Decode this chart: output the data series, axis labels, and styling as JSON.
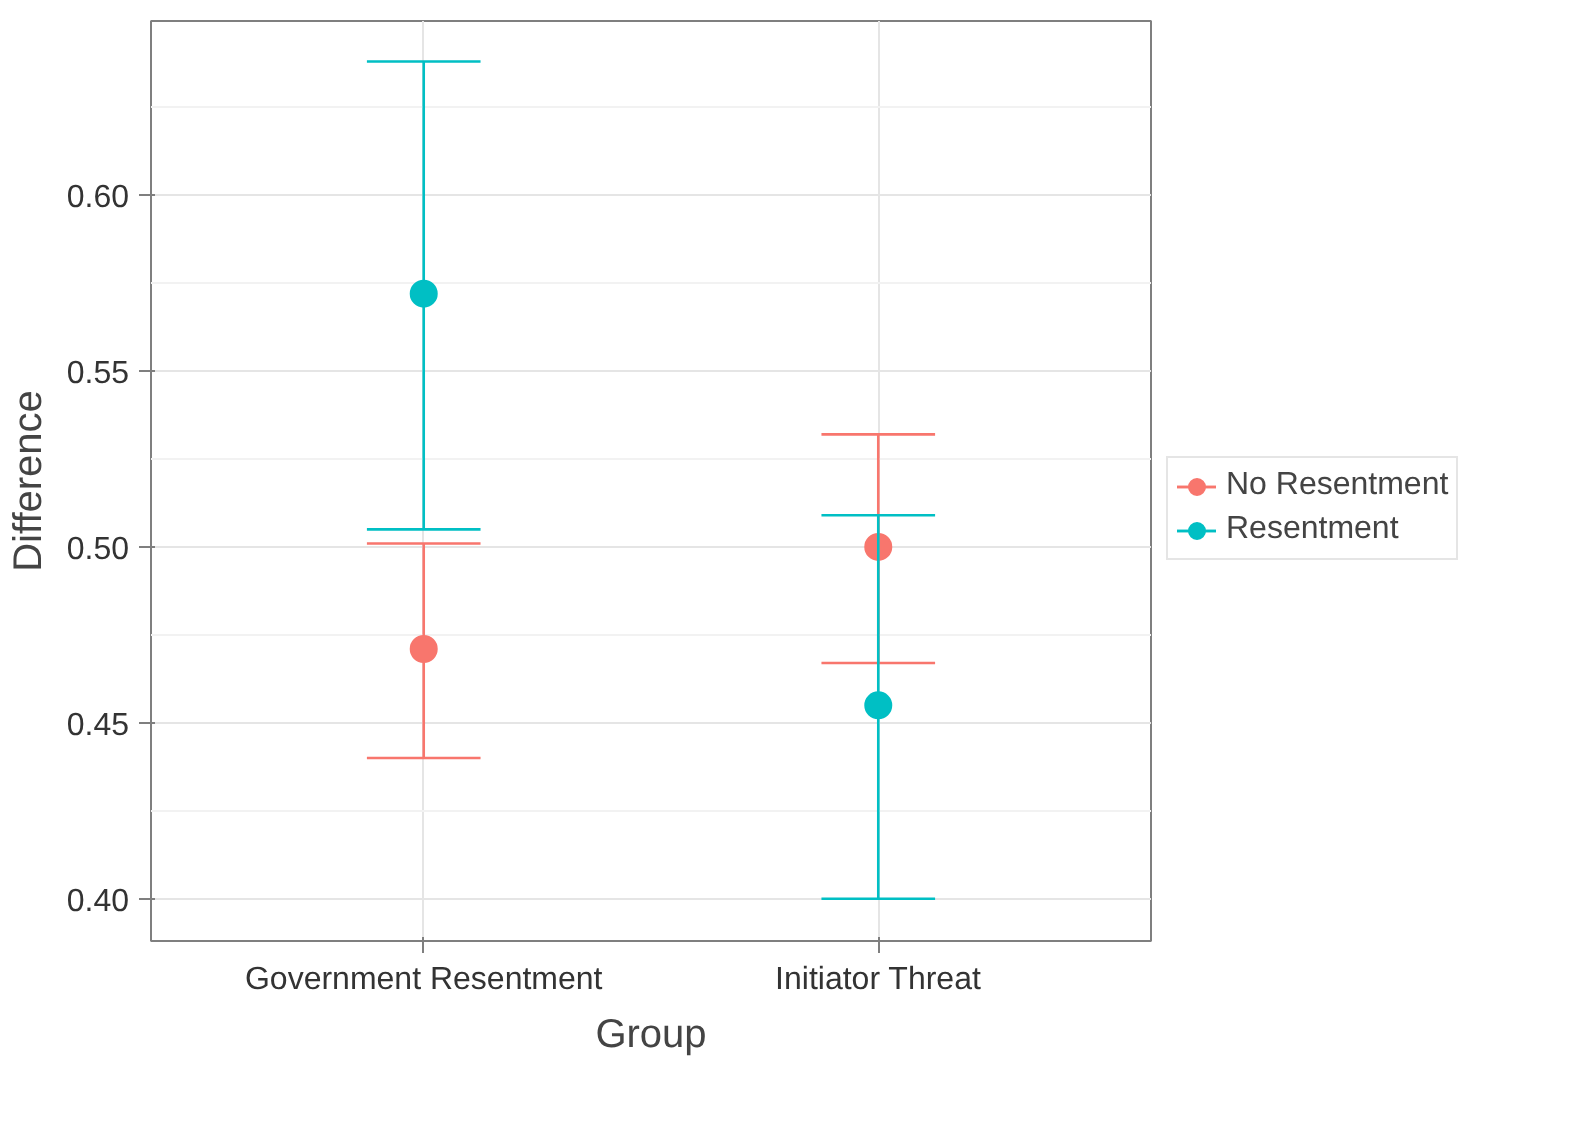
{
  "chart_data": {
    "type": "scatter",
    "xlabel": "Group",
    "ylabel": "Difference",
    "categories": [
      "Government Resentment",
      "Initiator Threat"
    ],
    "series": [
      {
        "name": "No Resentment",
        "color": "#f8766d",
        "values": [
          0.471,
          0.5
        ],
        "errors": [
          [
            0.44,
            0.501
          ],
          [
            0.467,
            0.532
          ]
        ]
      },
      {
        "name": "Resentment",
        "color": "#00bfc4",
        "values": [
          0.572,
          0.455
        ],
        "errors": [
          [
            0.505,
            0.638
          ],
          [
            0.4,
            0.509
          ]
        ]
      }
    ],
    "ylim": [
      0.388,
      0.6495
    ],
    "yticks": [
      {
        "value": 0.4,
        "label": "0.40"
      },
      0.45,
      {
        "value": 0.5,
        "label": "0.50"
      },
      0.55,
      {
        "value": 0.6,
        "label": "0.60"
      }
    ],
    "grid": true,
    "legend": "right",
    "marker": "circle"
  }
}
